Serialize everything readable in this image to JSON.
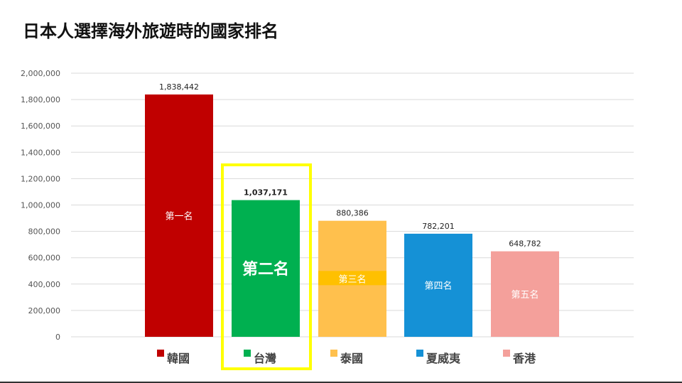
{
  "title": "日本人選擇海外旅遊時的國家排名",
  "chart_data": {
    "type": "bar",
    "title": "日本人選擇海外旅遊時的國家排名",
    "xlabel": "",
    "ylabel": "",
    "ylim": [
      0,
      2000000
    ],
    "yticks": [
      "0",
      "200,000",
      "400,000",
      "600,000",
      "800,000",
      "1,000,000",
      "1,200,000",
      "1,400,000",
      "1,600,000",
      "1,800,000",
      "2,000,000"
    ],
    "grid": true,
    "legend_position": "bottom",
    "highlighted_category": "台灣",
    "categories": [
      "韓國",
      "台灣",
      "泰國",
      "夏威夷",
      "香港"
    ],
    "values": [
      1838442,
      1037171,
      880386,
      782201,
      648782
    ],
    "value_labels": [
      "1,838,442",
      "1,037,171",
      "880,386",
      "782,201",
      "648,782"
    ],
    "rank_labels": [
      "第一名",
      "第二名",
      "第三名",
      "第四名",
      "第五名"
    ],
    "colors": [
      "#c00000",
      "#00b050",
      "#ffc04d",
      "#1591d6",
      "#f4a09b"
    ],
    "highlight_color": "#ffff00"
  }
}
